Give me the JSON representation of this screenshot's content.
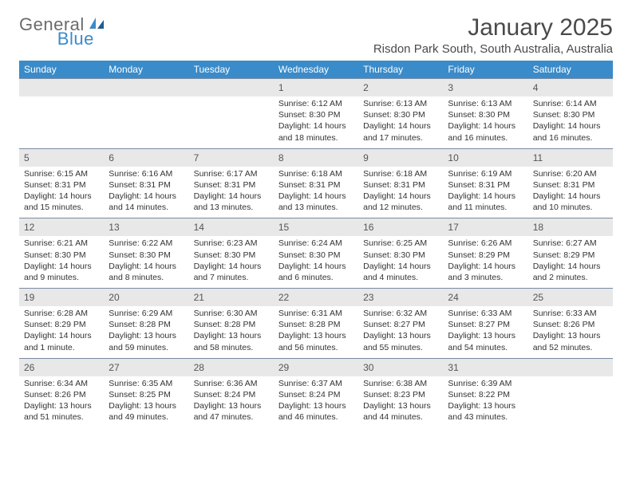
{
  "logo": {
    "word1": "General",
    "word2": "Blue"
  },
  "title": "January 2025",
  "location": "Risdon Park South, South Australia, Australia",
  "colors": {
    "header_bg": "#3a8bc9",
    "header_text": "#ffffff",
    "daynum_bg": "#e8e8e8",
    "row_border": "#7a8ba0",
    "body_text": "#333333",
    "logo_gray": "#6b6b6b"
  },
  "daysOfWeek": [
    "Sunday",
    "Monday",
    "Tuesday",
    "Wednesday",
    "Thursday",
    "Friday",
    "Saturday"
  ],
  "weeks": [
    [
      {
        "empty": true
      },
      {
        "empty": true
      },
      {
        "empty": true
      },
      {
        "n": "1",
        "sunrise": "Sunrise: 6:12 AM",
        "sunset": "Sunset: 8:30 PM",
        "daylight": "Daylight: 14 hours and 18 minutes."
      },
      {
        "n": "2",
        "sunrise": "Sunrise: 6:13 AM",
        "sunset": "Sunset: 8:30 PM",
        "daylight": "Daylight: 14 hours and 17 minutes."
      },
      {
        "n": "3",
        "sunrise": "Sunrise: 6:13 AM",
        "sunset": "Sunset: 8:30 PM",
        "daylight": "Daylight: 14 hours and 16 minutes."
      },
      {
        "n": "4",
        "sunrise": "Sunrise: 6:14 AM",
        "sunset": "Sunset: 8:30 PM",
        "daylight": "Daylight: 14 hours and 16 minutes."
      }
    ],
    [
      {
        "n": "5",
        "sunrise": "Sunrise: 6:15 AM",
        "sunset": "Sunset: 8:31 PM",
        "daylight": "Daylight: 14 hours and 15 minutes."
      },
      {
        "n": "6",
        "sunrise": "Sunrise: 6:16 AM",
        "sunset": "Sunset: 8:31 PM",
        "daylight": "Daylight: 14 hours and 14 minutes."
      },
      {
        "n": "7",
        "sunrise": "Sunrise: 6:17 AM",
        "sunset": "Sunset: 8:31 PM",
        "daylight": "Daylight: 14 hours and 13 minutes."
      },
      {
        "n": "8",
        "sunrise": "Sunrise: 6:18 AM",
        "sunset": "Sunset: 8:31 PM",
        "daylight": "Daylight: 14 hours and 13 minutes."
      },
      {
        "n": "9",
        "sunrise": "Sunrise: 6:18 AM",
        "sunset": "Sunset: 8:31 PM",
        "daylight": "Daylight: 14 hours and 12 minutes."
      },
      {
        "n": "10",
        "sunrise": "Sunrise: 6:19 AM",
        "sunset": "Sunset: 8:31 PM",
        "daylight": "Daylight: 14 hours and 11 minutes."
      },
      {
        "n": "11",
        "sunrise": "Sunrise: 6:20 AM",
        "sunset": "Sunset: 8:31 PM",
        "daylight": "Daylight: 14 hours and 10 minutes."
      }
    ],
    [
      {
        "n": "12",
        "sunrise": "Sunrise: 6:21 AM",
        "sunset": "Sunset: 8:30 PM",
        "daylight": "Daylight: 14 hours and 9 minutes."
      },
      {
        "n": "13",
        "sunrise": "Sunrise: 6:22 AM",
        "sunset": "Sunset: 8:30 PM",
        "daylight": "Daylight: 14 hours and 8 minutes."
      },
      {
        "n": "14",
        "sunrise": "Sunrise: 6:23 AM",
        "sunset": "Sunset: 8:30 PM",
        "daylight": "Daylight: 14 hours and 7 minutes."
      },
      {
        "n": "15",
        "sunrise": "Sunrise: 6:24 AM",
        "sunset": "Sunset: 8:30 PM",
        "daylight": "Daylight: 14 hours and 6 minutes."
      },
      {
        "n": "16",
        "sunrise": "Sunrise: 6:25 AM",
        "sunset": "Sunset: 8:30 PM",
        "daylight": "Daylight: 14 hours and 4 minutes."
      },
      {
        "n": "17",
        "sunrise": "Sunrise: 6:26 AM",
        "sunset": "Sunset: 8:29 PM",
        "daylight": "Daylight: 14 hours and 3 minutes."
      },
      {
        "n": "18",
        "sunrise": "Sunrise: 6:27 AM",
        "sunset": "Sunset: 8:29 PM",
        "daylight": "Daylight: 14 hours and 2 minutes."
      }
    ],
    [
      {
        "n": "19",
        "sunrise": "Sunrise: 6:28 AM",
        "sunset": "Sunset: 8:29 PM",
        "daylight": "Daylight: 14 hours and 1 minute."
      },
      {
        "n": "20",
        "sunrise": "Sunrise: 6:29 AM",
        "sunset": "Sunset: 8:28 PM",
        "daylight": "Daylight: 13 hours and 59 minutes."
      },
      {
        "n": "21",
        "sunrise": "Sunrise: 6:30 AM",
        "sunset": "Sunset: 8:28 PM",
        "daylight": "Daylight: 13 hours and 58 minutes."
      },
      {
        "n": "22",
        "sunrise": "Sunrise: 6:31 AM",
        "sunset": "Sunset: 8:28 PM",
        "daylight": "Daylight: 13 hours and 56 minutes."
      },
      {
        "n": "23",
        "sunrise": "Sunrise: 6:32 AM",
        "sunset": "Sunset: 8:27 PM",
        "daylight": "Daylight: 13 hours and 55 minutes."
      },
      {
        "n": "24",
        "sunrise": "Sunrise: 6:33 AM",
        "sunset": "Sunset: 8:27 PM",
        "daylight": "Daylight: 13 hours and 54 minutes."
      },
      {
        "n": "25",
        "sunrise": "Sunrise: 6:33 AM",
        "sunset": "Sunset: 8:26 PM",
        "daylight": "Daylight: 13 hours and 52 minutes."
      }
    ],
    [
      {
        "n": "26",
        "sunrise": "Sunrise: 6:34 AM",
        "sunset": "Sunset: 8:26 PM",
        "daylight": "Daylight: 13 hours and 51 minutes."
      },
      {
        "n": "27",
        "sunrise": "Sunrise: 6:35 AM",
        "sunset": "Sunset: 8:25 PM",
        "daylight": "Daylight: 13 hours and 49 minutes."
      },
      {
        "n": "28",
        "sunrise": "Sunrise: 6:36 AM",
        "sunset": "Sunset: 8:24 PM",
        "daylight": "Daylight: 13 hours and 47 minutes."
      },
      {
        "n": "29",
        "sunrise": "Sunrise: 6:37 AM",
        "sunset": "Sunset: 8:24 PM",
        "daylight": "Daylight: 13 hours and 46 minutes."
      },
      {
        "n": "30",
        "sunrise": "Sunrise: 6:38 AM",
        "sunset": "Sunset: 8:23 PM",
        "daylight": "Daylight: 13 hours and 44 minutes."
      },
      {
        "n": "31",
        "sunrise": "Sunrise: 6:39 AM",
        "sunset": "Sunset: 8:22 PM",
        "daylight": "Daylight: 13 hours and 43 minutes."
      },
      {
        "empty": true
      }
    ]
  ]
}
